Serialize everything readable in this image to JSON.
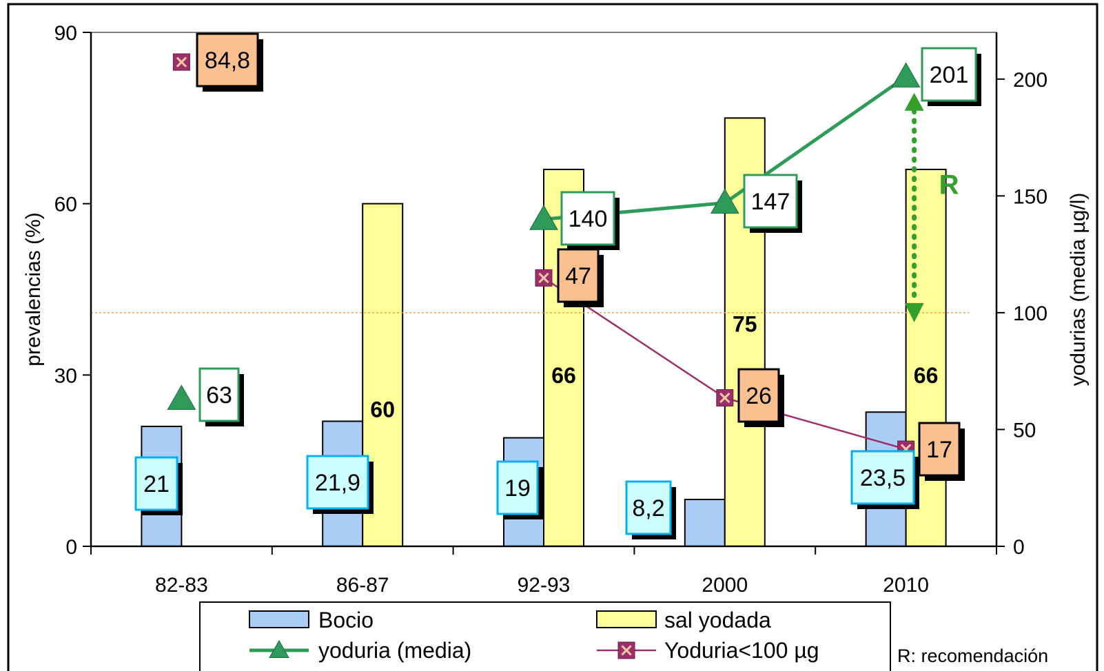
{
  "chart_data": {
    "type": "bar",
    "categories": [
      "82-83",
      "86-87",
      "92-93",
      "2000",
      "2010"
    ],
    "ylabel_left": "prevalencias (%)",
    "ylabel_right": "yodurias (media µg/l)",
    "ylim_left": [
      0,
      90
    ],
    "ylim_right": [
      0,
      220
    ],
    "yticks_left": [
      "0",
      "30",
      "60",
      "90"
    ],
    "yticks_left_values": [
      0,
      30,
      60,
      90
    ],
    "yticks_right": [
      "0",
      "50",
      "100",
      "150",
      "200"
    ],
    "yticks_right_values": [
      0,
      50,
      100,
      150,
      200
    ],
    "grid": false,
    "legend_position": "bottom",
    "series": [
      {
        "name": "Bocio",
        "kind": "bar",
        "axis": "left",
        "color": "#a9cdf5",
        "values": [
          21,
          21.9,
          19,
          8.2,
          23.5
        ],
        "labels": [
          "21",
          "21,9",
          "19",
          "8,2",
          "23,5"
        ]
      },
      {
        "name": "sal yodada",
        "kind": "bar",
        "axis": "left",
        "color": "#ffff99",
        "values": [
          null,
          60,
          66,
          75,
          66
        ],
        "labels": [
          "",
          "60",
          "66",
          "75",
          "66"
        ]
      },
      {
        "name": "yoduria (media)",
        "kind": "line",
        "axis": "right",
        "color": "#2e9b5b",
        "values": [
          63,
          null,
          140,
          147,
          201
        ],
        "labels": [
          "63",
          "",
          "140",
          "147",
          "201"
        ]
      },
      {
        "name": "Yoduria<100 µg",
        "kind": "line",
        "axis": "left",
        "color": "#9c2f6b",
        "values": [
          84.8,
          null,
          47,
          26,
          17
        ],
        "labels": [
          "84,8",
          "",
          "47",
          "26",
          "17"
        ]
      }
    ],
    "reference": {
      "axis": "right",
      "value": 100,
      "color": "#f0a040"
    },
    "recommendation_arrow": {
      "label": "R",
      "from": 190,
      "to": 100,
      "color": "#33a02c"
    },
    "footnote": "R: recomendación"
  }
}
